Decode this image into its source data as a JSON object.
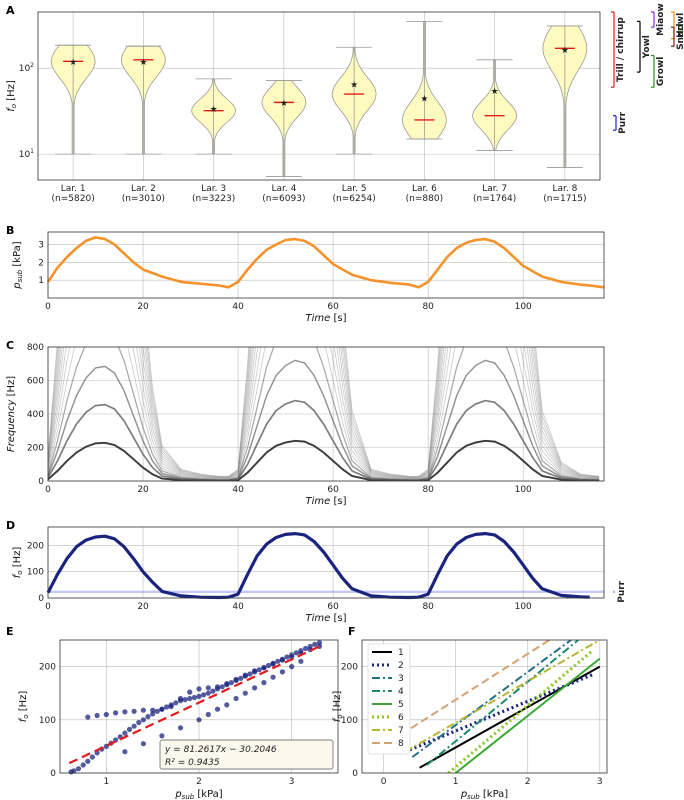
{
  "chart_data": [
    {
      "panel": "A",
      "type": "violin",
      "ylabel": "f_o [Hz]",
      "yscale": "log",
      "ylim": [
        5,
        450
      ],
      "yticks": [
        "10^1",
        "10^2"
      ],
      "categories": [
        "Lar. 1",
        "Lar. 2",
        "Lar. 3",
        "Lar. 4",
        "Lar. 5",
        "Lar. 6",
        "Lar. 7",
        "Lar. 8"
      ],
      "counts": [
        "(n=5820)",
        "(n=3010)",
        "(n=3223)",
        "(n=6093)",
        "(n=6254)",
        "(n=880)",
        "(n=1764)",
        "(n=1715)"
      ],
      "min": [
        10,
        10,
        10,
        5.5,
        10,
        15,
        11,
        7
      ],
      "max": [
        185,
        180,
        75,
        72,
        175,
        350,
        125,
        310
      ],
      "median": [
        120,
        125,
        32,
        40,
        50,
        25,
        28,
        170
      ],
      "mean": [
        120,
        120,
        34,
        40,
        65,
        45,
        55,
        165
      ],
      "call_ranges": [
        {
          "label": "Trill / chirrup",
          "lo": 60,
          "hi": 450,
          "color": "#e31a1c"
        },
        {
          "label": "Yowl",
          "lo": 90,
          "hi": 350,
          "color": "#000000"
        },
        {
          "label": "Miaow",
          "lo": 300,
          "hi": 450,
          "color": "#8a2be2"
        },
        {
          "label": "Howl",
          "lo": 220,
          "hi": 450,
          "color": "#ff8c00"
        },
        {
          "label": "Growl",
          "lo": 60,
          "hi": 140,
          "color": "#2e8b22"
        },
        {
          "label": "Snarl",
          "lo": 180,
          "hi": 300,
          "color": "#8b1a1a"
        },
        {
          "label": "Purr",
          "lo": 19,
          "hi": 28,
          "color": "#1f1fd0"
        }
      ]
    },
    {
      "panel": "B",
      "type": "line",
      "xlabel": "Time [s]",
      "ylabel": "p_sub [kPa]",
      "xlim": [
        0,
        117
      ],
      "ylim": [
        0,
        3.7
      ],
      "xticks": [
        0,
        20,
        40,
        60,
        80,
        100
      ],
      "yticks": [
        1,
        2,
        3
      ],
      "color": "#f5922a",
      "x": [
        0,
        2,
        4,
        6,
        8,
        10,
        12,
        14,
        16,
        18,
        20,
        24,
        28,
        32,
        36,
        38,
        40,
        42,
        44,
        46,
        48,
        50,
        52,
        54,
        56,
        58,
        60,
        64,
        68,
        72,
        76,
        78,
        80,
        82,
        84,
        86,
        88,
        90,
        92,
        94,
        96,
        98,
        100,
        104,
        108,
        112,
        114,
        117
      ],
      "y": [
        0.9,
        1.7,
        2.3,
        2.8,
        3.2,
        3.4,
        3.3,
        3.0,
        2.5,
        2.0,
        1.6,
        1.2,
        0.9,
        0.8,
        0.7,
        0.6,
        0.9,
        1.6,
        2.2,
        2.7,
        3.0,
        3.25,
        3.3,
        3.2,
        2.9,
        2.4,
        1.9,
        1.3,
        1.0,
        0.85,
        0.75,
        0.6,
        0.9,
        1.6,
        2.3,
        2.8,
        3.1,
        3.25,
        3.3,
        3.15,
        2.8,
        2.3,
        1.8,
        1.2,
        0.9,
        0.75,
        0.7,
        0.6
      ]
    },
    {
      "panel": "C",
      "type": "spectrogram",
      "xlabel": "Time [s]",
      "ylabel": "Frequency [Hz]",
      "xlim": [
        0,
        117
      ],
      "ylim": [
        0,
        800
      ],
      "xticks": [
        0,
        20,
        40,
        60,
        80,
        100
      ],
      "yticks": [
        0,
        200,
        400,
        600,
        800
      ],
      "fundamental_x": [
        0,
        2,
        4,
        6,
        8,
        10,
        12,
        14,
        16,
        18,
        20,
        22,
        24,
        28,
        32,
        36,
        38,
        40,
        42,
        44,
        46,
        48,
        50,
        52,
        54,
        56,
        58,
        60,
        62,
        64,
        68,
        72,
        76,
        78,
        80,
        82,
        84,
        86,
        88,
        90,
        92,
        94,
        96,
        98,
        100,
        102,
        104,
        108,
        112,
        116
      ],
      "fundamental_y": [
        10,
        60,
        120,
        170,
        205,
        225,
        228,
        215,
        180,
        130,
        80,
        40,
        15,
        5,
        3,
        2,
        2,
        5,
        50,
        110,
        170,
        210,
        230,
        240,
        235,
        210,
        170,
        120,
        70,
        30,
        5,
        3,
        2,
        2,
        5,
        50,
        110,
        170,
        210,
        230,
        240,
        235,
        210,
        170,
        120,
        70,
        30,
        8,
        3,
        2
      ],
      "harmonics": 4
    },
    {
      "panel": "D",
      "type": "line",
      "xlabel": "Time [s]",
      "ylabel": "f_o [Hz]",
      "xlim": [
        0,
        117
      ],
      "ylim": [
        0,
        270
      ],
      "xticks": [
        0,
        20,
        40,
        60,
        80,
        100
      ],
      "yticks": [
        0,
        100,
        200
      ],
      "color": "#1a237e",
      "purr_band": {
        "lo": 19,
        "hi": 28,
        "color": "#7b86e8",
        "label": "Purr"
      },
      "x": [
        0,
        2,
        4,
        6,
        8,
        10,
        12,
        14,
        16,
        18,
        20,
        22,
        24,
        28,
        32,
        36,
        38,
        40,
        42,
        44,
        46,
        48,
        50,
        52,
        54,
        56,
        58,
        60,
        62,
        64,
        68,
        72,
        76,
        78,
        80,
        82,
        84,
        86,
        88,
        90,
        92,
        94,
        96,
        98,
        100,
        102,
        104,
        108,
        112,
        114
      ],
      "y": [
        20,
        90,
        150,
        195,
        220,
        232,
        235,
        225,
        195,
        150,
        100,
        60,
        25,
        8,
        3,
        2,
        3,
        15,
        90,
        160,
        205,
        230,
        242,
        245,
        240,
        215,
        175,
        125,
        75,
        35,
        8,
        3,
        2,
        3,
        15,
        90,
        160,
        205,
        230,
        242,
        245,
        240,
        215,
        175,
        125,
        75,
        35,
        10,
        4,
        3
      ]
    },
    {
      "panel": "E",
      "type": "scatter",
      "xlabel": "p_sub [kPa]",
      "ylabel": "f_o [Hz]",
      "xlim": [
        0.5,
        3.5
      ],
      "ylim": [
        0,
        250
      ],
      "xticks": [
        1,
        2,
        3
      ],
      "yticks": [
        0,
        100,
        200
      ],
      "color": "#1a237e",
      "fit": {
        "slope": 81.2617,
        "intercept": -30.2046,
        "color": "#e31a1c"
      },
      "fit_text": "y = 81.2617x − 30.2046",
      "r2_text": "R² = 0.9435",
      "points": [
        [
          0.62,
          2
        ],
        [
          0.65,
          4
        ],
        [
          0.7,
          8
        ],
        [
          0.75,
          15
        ],
        [
          0.8,
          22
        ],
        [
          0.85,
          30
        ],
        [
          0.9,
          38
        ],
        [
          0.95,
          45
        ],
        [
          1.0,
          50
        ],
        [
          1.05,
          56
        ],
        [
          1.1,
          62
        ],
        [
          1.15,
          68
        ],
        [
          1.2,
          75
        ],
        [
          1.25,
          82
        ],
        [
          1.3,
          88
        ],
        [
          1.35,
          95
        ],
        [
          1.4,
          100
        ],
        [
          1.45,
          106
        ],
        [
          1.5,
          111
        ],
        [
          1.55,
          116
        ],
        [
          1.6,
          120
        ],
        [
          1.65,
          124
        ],
        [
          1.7,
          128
        ],
        [
          1.75,
          132
        ],
        [
          1.8,
          136
        ],
        [
          1.85,
          138
        ],
        [
          1.9,
          140
        ],
        [
          1.95,
          142
        ],
        [
          2.0,
          144
        ],
        [
          2.05,
          147
        ],
        [
          2.1,
          150
        ],
        [
          2.15,
          154
        ],
        [
          2.2,
          158
        ],
        [
          2.25,
          162
        ],
        [
          2.3,
          166
        ],
        [
          2.35,
          170
        ],
        [
          2.4,
          174
        ],
        [
          2.45,
          178
        ],
        [
          2.5,
          182
        ],
        [
          2.55,
          186
        ],
        [
          2.6,
          190
        ],
        [
          2.65,
          194
        ],
        [
          2.7,
          198
        ],
        [
          2.75,
          202
        ],
        [
          2.8,
          206
        ],
        [
          2.85,
          210
        ],
        [
          2.9,
          214
        ],
        [
          2.95,
          218
        ],
        [
          3.0,
          222
        ],
        [
          3.05,
          226
        ],
        [
          3.1,
          230
        ],
        [
          3.15,
          234
        ],
        [
          3.2,
          238
        ],
        [
          3.25,
          242
        ],
        [
          3.3,
          245
        ],
        [
          0.8,
          105
        ],
        [
          0.9,
          108
        ],
        [
          1.0,
          110
        ],
        [
          1.1,
          113
        ],
        [
          1.2,
          115
        ],
        [
          1.3,
          116
        ],
        [
          1.4,
          118
        ],
        [
          1.5,
          118
        ],
        [
          1.6,
          120
        ],
        [
          1.7,
          125
        ],
        [
          1.8,
          140
        ],
        [
          1.9,
          152
        ],
        [
          2.0,
          158
        ],
        [
          2.1,
          160
        ],
        [
          2.2,
          162
        ],
        [
          2.3,
          168
        ],
        [
          2.4,
          176
        ],
        [
          2.5,
          184
        ],
        [
          2.6,
          192
        ],
        [
          2.7,
          198
        ],
        [
          2.8,
          205
        ],
        [
          2.9,
          212
        ],
        [
          3.0,
          218
        ],
        [
          3.1,
          225
        ],
        [
          3.2,
          232
        ],
        [
          3.3,
          238
        ],
        [
          1.2,
          40
        ],
        [
          1.4,
          55
        ],
        [
          1.6,
          70
        ],
        [
          1.8,
          85
        ],
        [
          2.0,
          100
        ],
        [
          2.1,
          110
        ],
        [
          2.2,
          120
        ],
        [
          2.3,
          128
        ],
        [
          2.4,
          140
        ],
        [
          2.5,
          150
        ],
        [
          2.6,
          160
        ],
        [
          2.7,
          170
        ],
        [
          2.8,
          180
        ],
        [
          2.9,
          190
        ],
        [
          3.0,
          200
        ],
        [
          3.1,
          210
        ]
      ]
    },
    {
      "panel": "F",
      "type": "line",
      "xlabel": "p_sub [kPa]",
      "ylabel": "f_o [Hz]",
      "xlim": [
        -0.3,
        3.1
      ],
      "ylim": [
        0,
        250
      ],
      "xticks": [
        0,
        1,
        2,
        3
      ],
      "yticks": [
        0,
        100,
        200
      ],
      "series": [
        {
          "name": "1",
          "color": "#000000",
          "dash": "solid",
          "x": [
            0.5,
            3.0
          ],
          "y": [
            10,
            200
          ]
        },
        {
          "name": "2",
          "color": "#1a237e",
          "dash": "dot",
          "x": [
            0.3,
            2.9
          ],
          "y": [
            40,
            185
          ]
        },
        {
          "name": "3",
          "color": "#1f6f8b",
          "dash": "dashdot",
          "x": [
            0.4,
            2.6
          ],
          "y": [
            30,
            250
          ]
        },
        {
          "name": "4",
          "color": "#1b8a6b",
          "dash": "dashdot",
          "x": [
            0.6,
            2.7
          ],
          "y": [
            15,
            250
          ]
        },
        {
          "name": "5",
          "color": "#3aa832",
          "dash": "solid",
          "x": [
            1.0,
            3.0
          ],
          "y": [
            0,
            215
          ]
        },
        {
          "name": "6",
          "color": "#8ac926",
          "dash": "dot",
          "x": [
            0.9,
            2.9
          ],
          "y": [
            0,
            230
          ]
        },
        {
          "name": "7",
          "color": "#b5b532",
          "dash": "dashdot",
          "x": [
            0.3,
            3.0
          ],
          "y": [
            40,
            250
          ]
        },
        {
          "name": "8",
          "color": "#d4a373",
          "dash": "dash",
          "x": [
            0.1,
            2.3
          ],
          "y": [
            60,
            250
          ]
        }
      ]
    }
  ],
  "panel_labels": [
    "A",
    "B",
    "C",
    "D",
    "E",
    "F"
  ]
}
